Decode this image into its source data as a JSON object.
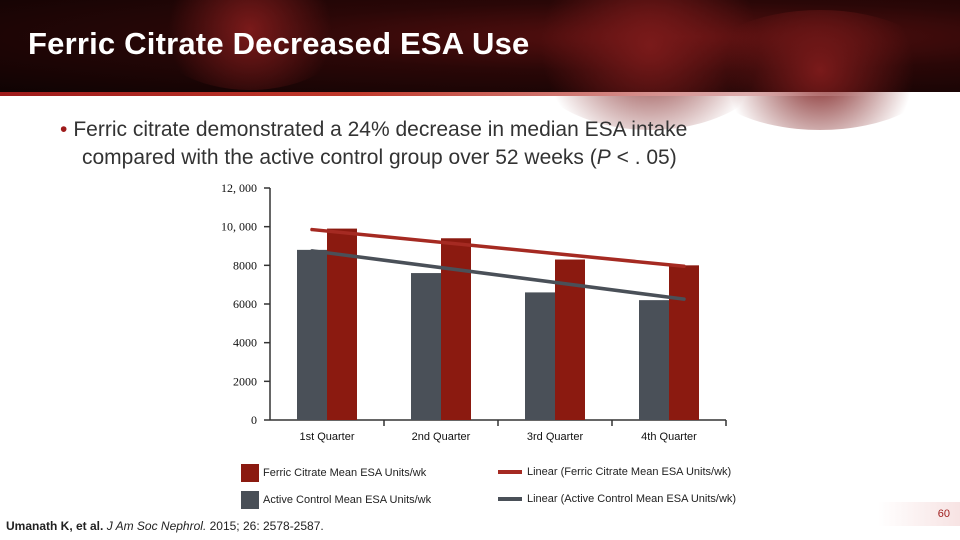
{
  "slide": {
    "title": "Ferric Citrate Decreased ESA Use",
    "bullet_line1": "Ferric citrate demonstrated a 24% decrease in median ESA intake",
    "bullet_line2_pre": "compared with the active control group over 52 weeks (",
    "bullet_p": "P",
    "bullet_line2_post": " < . 05)",
    "citation_authors": "Umanath K, et al. ",
    "citation_journal": "J Am Soc Nephrol.",
    "citation_rest": " 2015; 26: 2578-2587.",
    "page_number": "60"
  },
  "colors": {
    "ferric": "#8b1a10",
    "active": "#4a5058",
    "ferric_trend": "#a52a22",
    "active_trend": "#4a5058"
  },
  "chart_data": {
    "type": "bar",
    "categories": [
      "1st Quarter",
      "2nd Quarter",
      "3rd Quarter",
      "4th Quarter"
    ],
    "y_tick_labels": [
      "0",
      "2000",
      "4000",
      "6000",
      "8000",
      "10, 000",
      "12, 000"
    ],
    "ylim": [
      0,
      12000
    ],
    "series": [
      {
        "name": "Active Control Mean ESA Units/wk",
        "values": [
          8800,
          7600,
          6600,
          6200
        ],
        "color": "#4a5058"
      },
      {
        "name": "Ferric Citrate Mean ESA Units/wk",
        "values": [
          9900,
          9400,
          8300,
          8000
        ],
        "color": "#8b1a10"
      }
    ],
    "trendlines": [
      {
        "name": "Linear (Ferric Citrate Mean ESA Units/wk)",
        "start": 9850,
        "end": 7950,
        "color": "#a52a22"
      },
      {
        "name": "Linear (Active Control Mean ESA Units/wk)",
        "start": 8750,
        "end": 6250,
        "color": "#4a5058"
      }
    ],
    "legend": [
      "Ferric Citrate Mean ESA Units/wk",
      "Linear (Ferric Citrate Mean ESA Units/wk)",
      "Active Control Mean ESA Units/wk",
      "Linear (Active Control Mean ESA Units/wk)"
    ],
    "legend_position": "bottom",
    "grid": false
  }
}
